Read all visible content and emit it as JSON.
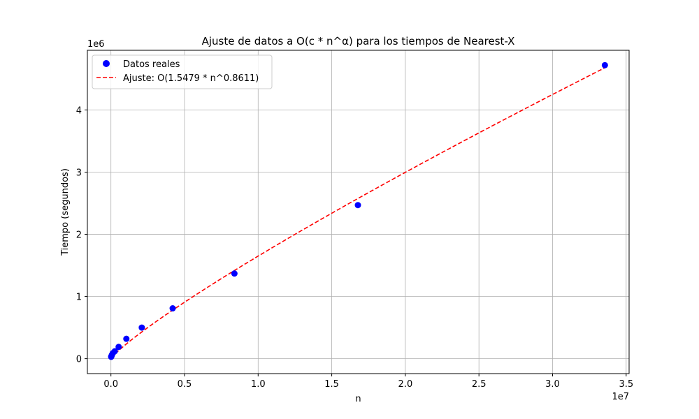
{
  "chart_data": {
    "type": "scatter",
    "title": "Ajuste de datos a O(c * n^α) para los tiempos de Nearest-X",
    "xlabel": "n",
    "ylabel": "Tiempo (segundos)",
    "x_scale_label": "1e7",
    "y_scale_label": "1e6",
    "x_scale": 10000000,
    "y_scale": 1000000,
    "xlim": [
      -1600000,
      35200000
    ],
    "ylim": [
      -240000,
      4960000
    ],
    "x_ticks": [
      0,
      5000000,
      10000000,
      15000000,
      20000000,
      25000000,
      30000000,
      35000000
    ],
    "x_tick_labels": [
      "0.0",
      "0.5",
      "1.0",
      "1.5",
      "2.0",
      "2.5",
      "3.0",
      "3.5"
    ],
    "y_ticks": [
      0,
      1000000,
      2000000,
      3000000,
      4000000
    ],
    "y_tick_labels": [
      "0",
      "1",
      "2",
      "3",
      "4"
    ],
    "grid": true,
    "legend_position": "top-left",
    "series": [
      {
        "name": "Datos reales",
        "type": "scatter",
        "color": "#0000ff",
        "x": [
          16384,
          32768,
          65536,
          131072,
          262144,
          524288,
          1048576,
          2097152,
          4194304,
          8388608,
          16777216,
          33554432
        ],
        "y": [
          30000,
          40000,
          60000,
          90000,
          120000,
          190000,
          320000,
          500000,
          810000,
          1370000,
          2470000,
          4720000
        ]
      },
      {
        "name": "Ajuste: O(1.5479 * n^0.8611)",
        "type": "line",
        "style": "dashed",
        "color": "#ff0000",
        "c": 1.5479,
        "alpha": 0.8611
      }
    ]
  }
}
